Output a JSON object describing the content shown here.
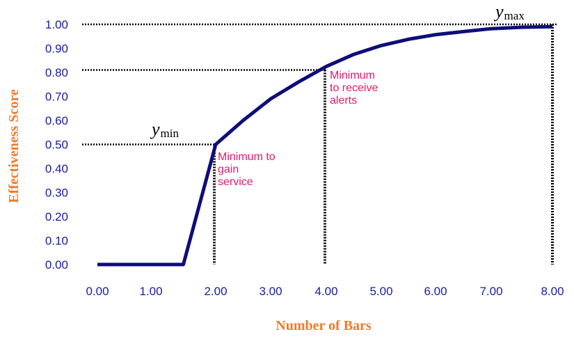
{
  "chart_data": {
    "type": "line",
    "xlabel": "Number of Bars",
    "ylabel": "Effectiveness Score",
    "x_tick_labels": [
      "0.00",
      "1.00",
      "2.00",
      "3.00",
      "4.00",
      "5.00",
      "6.00",
      "7.00",
      "8.00"
    ],
    "y_tick_labels": [
      "0.00",
      "0.10",
      "0.20",
      "0.30",
      "0.40",
      "0.50",
      "0.60",
      "0.70",
      "0.80",
      "0.90",
      "1.00"
    ],
    "ylim": [
      0,
      1
    ],
    "grid": false,
    "colors": {
      "line": "#0d0d7a",
      "ticks": "#1a1aa6",
      "axis_title": "#f07a2a",
      "annotation": "#e0196e",
      "guides": "#000000"
    },
    "series": [
      {
        "points": [
          [
            0.0,
            0.0
          ],
          [
            1.0,
            0.0
          ],
          [
            1.5,
            0.0
          ],
          [
            2.0,
            0.5
          ],
          [
            2.5,
            0.6
          ],
          [
            3.0,
            0.69
          ],
          [
            3.5,
            0.76
          ],
          [
            4.0,
            0.825
          ],
          [
            4.5,
            0.875
          ],
          [
            5.0,
            0.912
          ],
          [
            5.5,
            0.938
          ],
          [
            6.0,
            0.957
          ],
          [
            6.5,
            0.97
          ],
          [
            7.0,
            0.982
          ],
          [
            7.5,
            0.988
          ],
          [
            8.0,
            0.99
          ]
        ]
      }
    ],
    "annotations": [
      {
        "id": "min-service",
        "lines": [
          "Minimum to",
          "gain",
          "service"
        ],
        "x": 2.0,
        "y": 0.5
      },
      {
        "id": "min-alerts",
        "lines": [
          "Minimum",
          "to receive",
          "alerts"
        ],
        "x": 4.0,
        "y": 0.81
      }
    ],
    "markers": [
      {
        "id": "ymin",
        "main": "y",
        "sub": "min",
        "x": 2.0,
        "y": 0.5
      },
      {
        "id": "ymax",
        "main": "y",
        "sub": "max",
        "x": 8.0,
        "y": 1.0
      }
    ]
  }
}
